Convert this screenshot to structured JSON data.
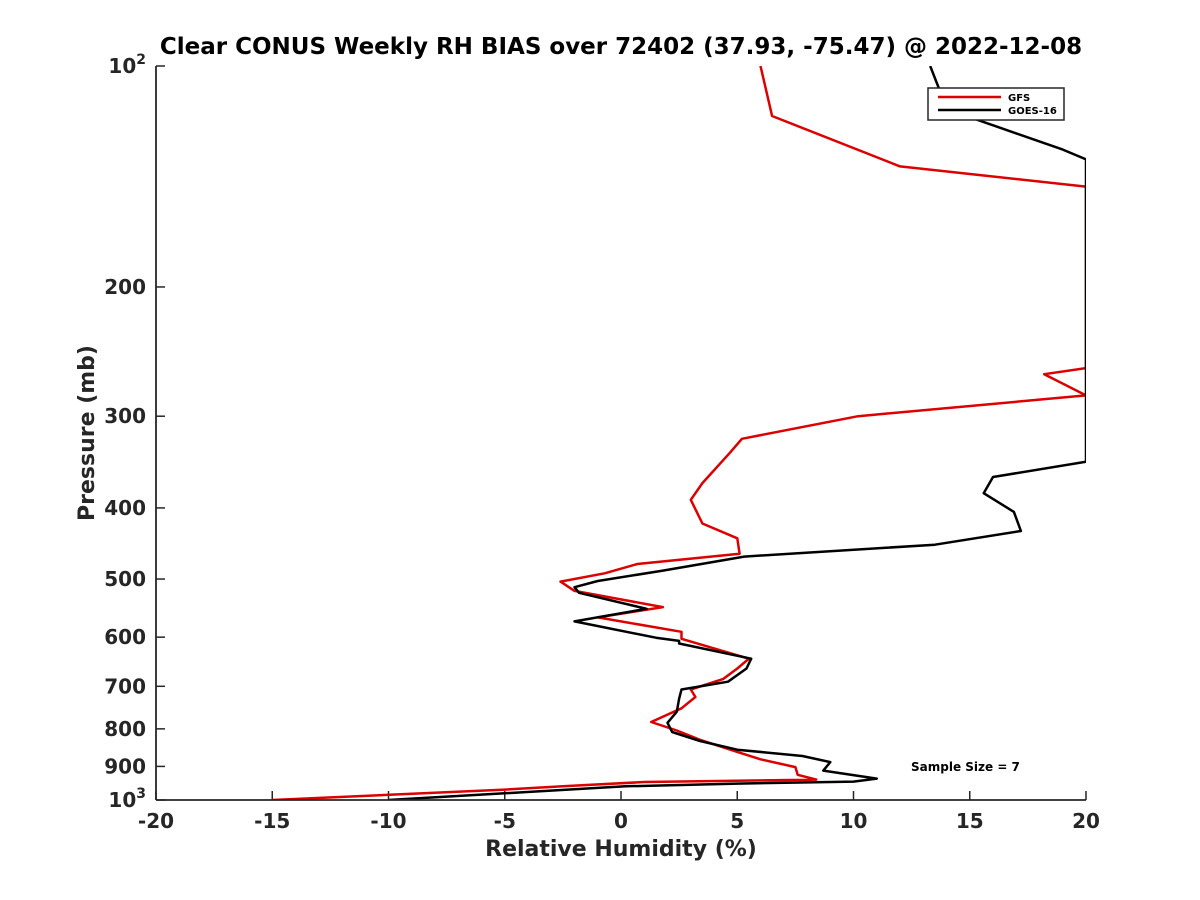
{
  "chart_data": {
    "type": "line",
    "title": "Clear CONUS Weekly RH BIAS over 72402 (37.93, -75.47) @ 2022-12-08",
    "xlabel": "Relative Humidity (%)",
    "ylabel": "Pressure (mb)",
    "xlim": [
      -20,
      20
    ],
    "ylim": [
      100,
      1000
    ],
    "yscale": "log",
    "y_reversed": true,
    "grid": false,
    "legend_position": "top-right",
    "x_ticks": [
      "-20",
      "-15",
      "-10",
      "-5",
      "0",
      "5",
      "10",
      "15",
      "20"
    ],
    "y_ticks": [
      {
        "value": 100,
        "base": "10",
        "exp": "2"
      },
      {
        "value": 200,
        "label": "200"
      },
      {
        "value": 300,
        "label": "300"
      },
      {
        "value": 400,
        "label": "400"
      },
      {
        "value": 500,
        "label": "500"
      },
      {
        "value": 600,
        "label": "600"
      },
      {
        "value": 700,
        "label": "700"
      },
      {
        "value": 800,
        "label": "800"
      },
      {
        "value": 900,
        "label": "900"
      },
      {
        "value": 1000,
        "base": "10",
        "exp": "3"
      }
    ],
    "annotation": "Sample Size = 7",
    "series": [
      {
        "name": "GFS",
        "color": "#dd0000",
        "points": [
          [
            6.0,
            100
          ],
          [
            6.5,
            117
          ],
          [
            12.0,
            137
          ],
          [
            20.0,
            146
          ],
          [
            20.0,
            258
          ],
          [
            18.2,
            263
          ],
          [
            20.0,
            281
          ],
          [
            10.2,
            300
          ],
          [
            5.2,
            322
          ],
          [
            4.7,
            336
          ],
          [
            3.5,
            370
          ],
          [
            3.0,
            390
          ],
          [
            3.5,
            420
          ],
          [
            5.0,
            440
          ],
          [
            5.1,
            462
          ],
          [
            0.7,
            477
          ],
          [
            -0.7,
            491
          ],
          [
            -2.6,
            504
          ],
          [
            -2.0,
            519
          ],
          [
            1.8,
            546
          ],
          [
            -1.0,
            564
          ],
          [
            2.6,
            590
          ],
          [
            2.6,
            598
          ],
          [
            2.6,
            603
          ],
          [
            5.5,
            642
          ],
          [
            5.0,
            662
          ],
          [
            4.4,
            684
          ],
          [
            3.0,
            707
          ],
          [
            3.2,
            724
          ],
          [
            2.6,
            750
          ],
          [
            1.3,
            783
          ],
          [
            2.4,
            804
          ],
          [
            3.4,
            828
          ],
          [
            5.0,
            860
          ],
          [
            6.0,
            880
          ],
          [
            7.5,
            902
          ],
          [
            7.6,
            924
          ],
          [
            8.4,
            938
          ],
          [
            6.5,
            940
          ],
          [
            1.0,
            945
          ],
          [
            -2.5,
            958
          ],
          [
            -5.0,
            968
          ],
          [
            -15.0,
            1000
          ]
        ]
      },
      {
        "name": "GOES-16",
        "color": "#000000",
        "points": [
          [
            13.3,
            100
          ],
          [
            14.0,
            114
          ],
          [
            15.2,
            118
          ],
          [
            19.0,
            130
          ],
          [
            20.0,
            134
          ],
          [
            20.0,
            346
          ],
          [
            16.0,
            363
          ],
          [
            15.6,
            382
          ],
          [
            16.9,
            405
          ],
          [
            17.2,
            430
          ],
          [
            13.5,
            449
          ],
          [
            5.3,
            466
          ],
          [
            1.8,
            487
          ],
          [
            -1.0,
            503
          ],
          [
            -2.0,
            513
          ],
          [
            -1.8,
            522
          ],
          [
            1.1,
            549
          ],
          [
            -2.0,
            571
          ],
          [
            1.5,
            601
          ],
          [
            2.5,
            607
          ],
          [
            2.5,
            612
          ],
          [
            5.6,
            642
          ],
          [
            5.4,
            662
          ],
          [
            4.6,
            690
          ],
          [
            2.6,
            707
          ],
          [
            2.5,
            728
          ],
          [
            2.4,
            758
          ],
          [
            2.0,
            785
          ],
          [
            2.2,
            808
          ],
          [
            3.4,
            831
          ],
          [
            5.0,
            854
          ],
          [
            7.8,
            871
          ],
          [
            9.0,
            888
          ],
          [
            8.7,
            912
          ],
          [
            11.0,
            935
          ],
          [
            10.0,
            944
          ],
          [
            5.0,
            950
          ],
          [
            0.2,
            958
          ],
          [
            -10.0,
            1000
          ]
        ]
      }
    ]
  }
}
